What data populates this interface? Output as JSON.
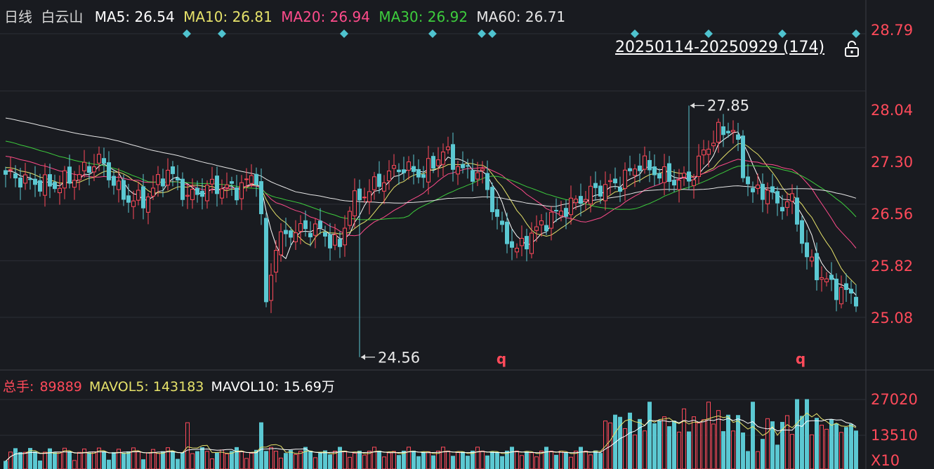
{
  "header": {
    "period": "日线",
    "name": "白云山",
    "ma": [
      {
        "label": "MA5: 26.54",
        "color": "#ffffff"
      },
      {
        "label": "MA10: 26.81",
        "color": "#e6e26a"
      },
      {
        "label": "MA20: 26.94",
        "color": "#ff4c8b"
      },
      {
        "label": "MA30: 26.92",
        "color": "#3dcc3d"
      },
      {
        "label": "MA60: 26.71",
        "color": "#e6e6e6"
      }
    ]
  },
  "range_label": "20250114-20250929 (174)",
  "price_axis": {
    "ticks": [
      "28.79",
      "28.04",
      "27.30",
      "26.56",
      "25.82",
      "25.08"
    ],
    "values": [
      28.79,
      28.04,
      27.3,
      26.56,
      25.82,
      25.08
    ]
  },
  "annotations": {
    "high": "27.85",
    "low": "24.56",
    "marker": "q"
  },
  "volume_header": {
    "total_label": "总手:",
    "total_value": "89889",
    "mavol5": "MAVOL5: 143183",
    "mavol10": "MAVOL10: 15.69万"
  },
  "volume_axis": {
    "ticks": [
      "27020",
      "13510"
    ],
    "multiplier": "X10"
  },
  "colors": {
    "up": "#ff4a5a",
    "down": "#5bc8d2",
    "background": "#191b20",
    "grid": "#2c2f36"
  },
  "chart_data": {
    "type": "candlestick",
    "x_count": 174,
    "ylim": [
      24.4,
      29.0
    ],
    "high": {
      "index": 139,
      "value": 27.85
    },
    "low": {
      "index": 72,
      "value": 24.56
    }
  }
}
